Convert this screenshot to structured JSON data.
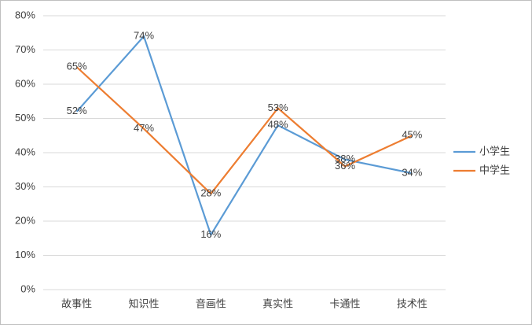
{
  "chart_data": {
    "type": "line",
    "categories": [
      "故事性",
      "知识性",
      "音画性",
      "真实性",
      "卡通性",
      "技术性"
    ],
    "series": [
      {
        "name": "小学生",
        "color": "#5b9bd5",
        "values": [
          52,
          74,
          16,
          48,
          38,
          34
        ],
        "value_labels": [
          "52%",
          "74%",
          "16%",
          "48%",
          "38%",
          "34%"
        ]
      },
      {
        "name": "中学生",
        "color": "#ed7d31",
        "values": [
          65,
          47,
          28,
          53,
          36,
          45
        ],
        "value_labels": [
          "65%",
          "47%",
          "28%",
          "53%",
          "36%",
          "45%"
        ]
      }
    ],
    "ylim": [
      0,
      80
    ],
    "yticks": [
      {
        "value": 0,
        "label": "0%"
      },
      {
        "value": 10,
        "label": "10%"
      },
      {
        "value": 20,
        "label": "20%"
      },
      {
        "value": 30,
        "label": "30%"
      },
      {
        "value": 40,
        "label": "40%"
      },
      {
        "value": 50,
        "label": "50%"
      },
      {
        "value": 60,
        "label": "60%"
      },
      {
        "value": 70,
        "label": "70%"
      },
      {
        "value": 80,
        "label": "80%"
      }
    ],
    "grid": true,
    "legend": "right"
  }
}
